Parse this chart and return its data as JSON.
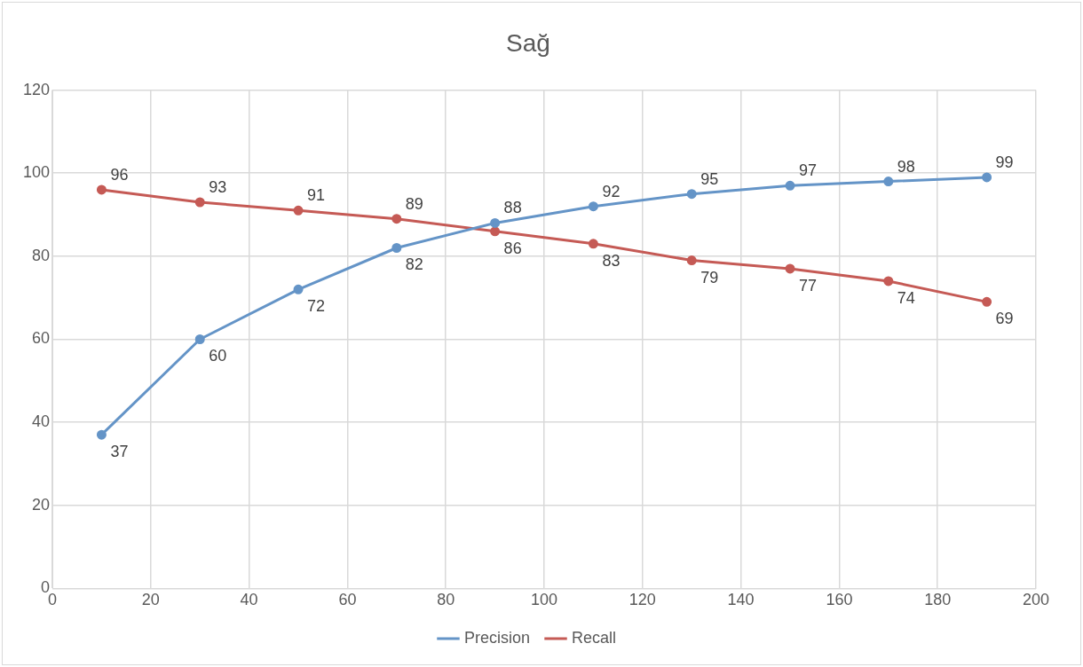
{
  "chart_data": {
    "type": "line",
    "title": "Sağ",
    "x": [
      10,
      30,
      50,
      70,
      90,
      110,
      130,
      150,
      170,
      190
    ],
    "series": [
      {
        "name": "Precision",
        "color": "#6494c7",
        "values": [
          37,
          60,
          72,
          82,
          88,
          92,
          95,
          97,
          98,
          99
        ]
      },
      {
        "name": "Recall",
        "color": "#c55a55",
        "values": [
          96,
          93,
          91,
          89,
          86,
          83,
          79,
          77,
          74,
          69
        ]
      }
    ],
    "xlim": [
      0,
      200
    ],
    "xticks": [
      0,
      20,
      40,
      60,
      80,
      100,
      120,
      140,
      160,
      180,
      200
    ],
    "ylim": [
      0,
      120
    ],
    "yticks": [
      0,
      20,
      40,
      60,
      80,
      100,
      120
    ],
    "grid": true,
    "legend": "bottom",
    "marker": "circle",
    "line_style": "solid",
    "data_labels": true
  }
}
